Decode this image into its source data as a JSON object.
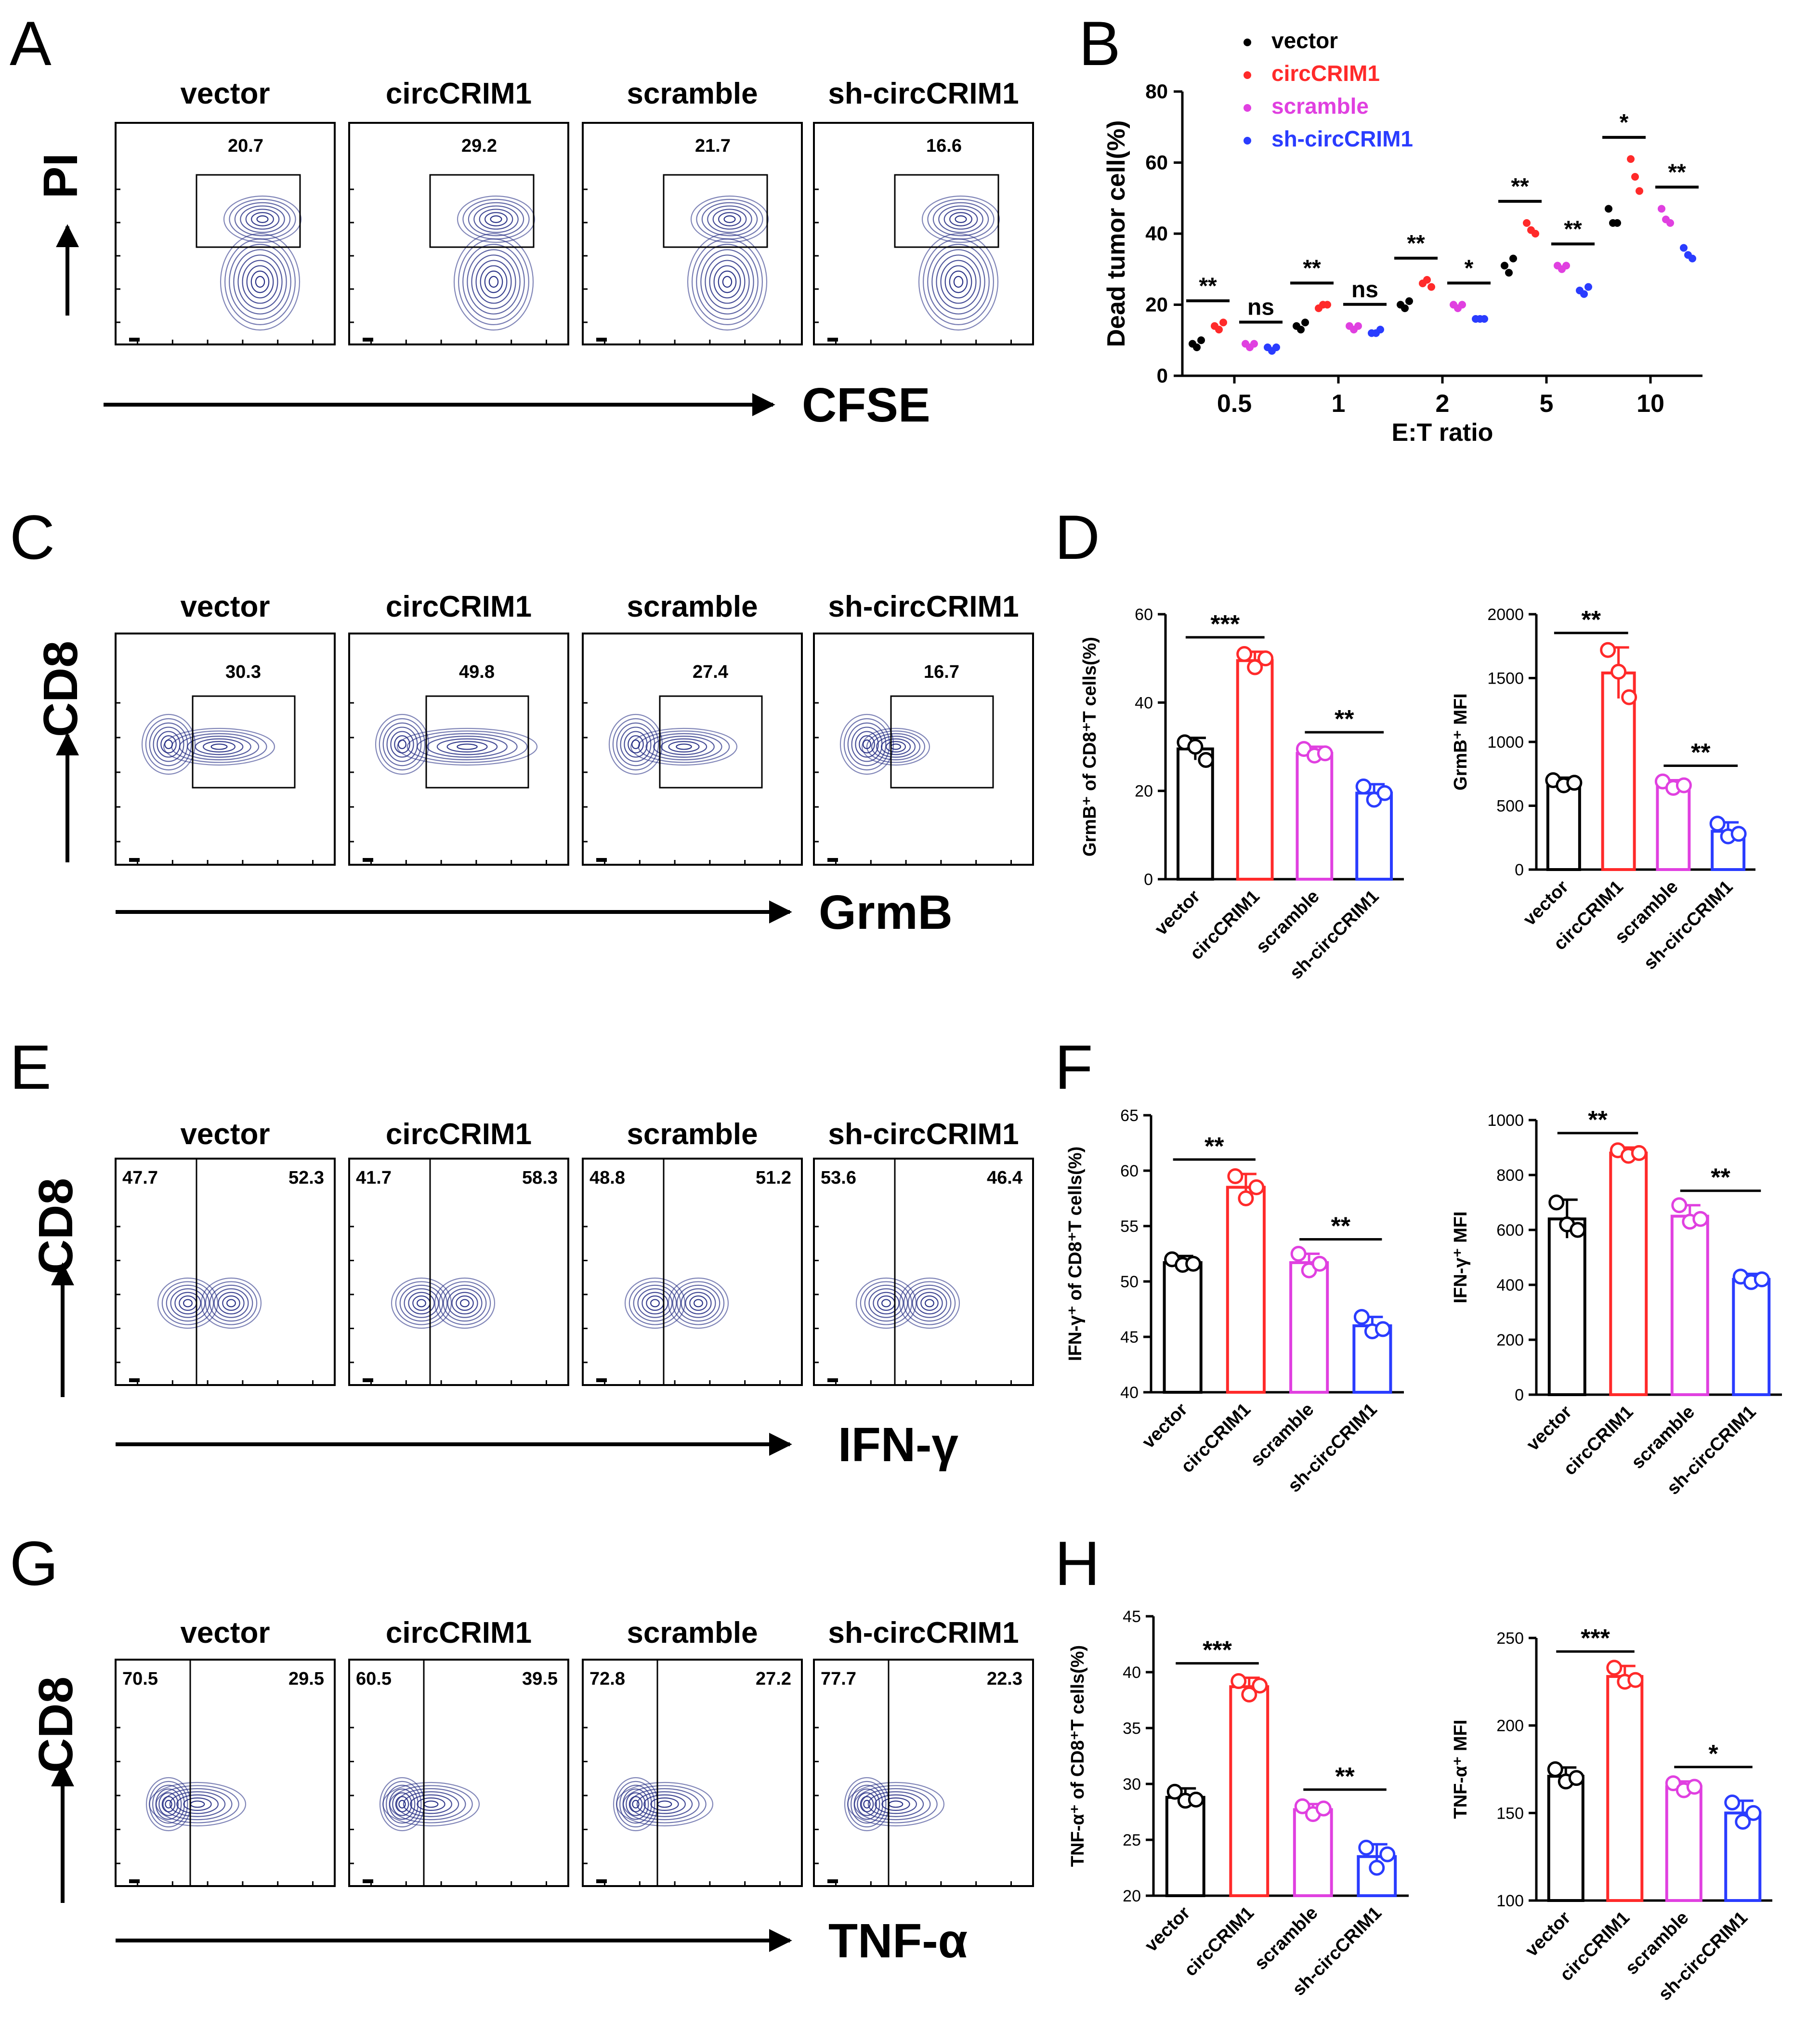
{
  "panels": {
    "A": "A",
    "B": "B",
    "C": "C",
    "D": "D",
    "E": "E",
    "F": "F",
    "G": "G",
    "H": "H"
  },
  "groups": [
    "vector",
    "circCRIM1",
    "scramble",
    "sh-circCRIM1"
  ],
  "colors": {
    "vector": "#000000",
    "circCRIM1": "#ff2a2a",
    "scramble": "#e040e0",
    "sh-circCRIM1": "#2a3cff",
    "contour": "#1a237e"
  },
  "flow_A": {
    "y_axis": "PI",
    "x_axis": "CFSE",
    "gates": [
      "20.7",
      "29.2",
      "21.7",
      "16.6"
    ]
  },
  "flow_C": {
    "y_axis": "CD8",
    "x_axis": "GrmB",
    "gates": [
      "30.3",
      "49.8",
      "27.4",
      "16.7"
    ]
  },
  "flow_E": {
    "y_axis": "CD8",
    "x_axis": "IFN-γ",
    "left": [
      "47.7",
      "41.7",
      "48.8",
      "53.6"
    ],
    "right": [
      "52.3",
      "58.3",
      "51.2",
      "46.4"
    ]
  },
  "flow_G": {
    "y_axis": "CD8",
    "x_axis": "TNF-α",
    "left": [
      "70.5",
      "60.5",
      "72.8",
      "77.7"
    ],
    "right": [
      "29.5",
      "39.5",
      "27.2",
      "22.3"
    ]
  },
  "chart_data": [
    {
      "id": "B",
      "type": "scatter",
      "title": "",
      "xlabel": "E:T ratio",
      "ylabel": "Dead tumor cell(%)",
      "categories": [
        "0.5",
        "1",
        "2",
        "5",
        "10"
      ],
      "ylim": [
        0,
        80
      ],
      "yticks": [
        "0",
        "20",
        "40",
        "60",
        "80"
      ],
      "series": [
        {
          "name": "vector",
          "points": [
            [
              9,
              8,
              10
            ],
            [
              14,
              13,
              15
            ],
            [
              20,
              19,
              21
            ],
            [
              31,
              29,
              33
            ],
            [
              47,
              43,
              43
            ]
          ]
        },
        {
          "name": "circCRIM1",
          "points": [
            [
              14,
              13,
              15
            ],
            [
              19,
              20,
              20
            ],
            [
              26,
              27,
              25
            ],
            [
              43,
              41,
              40
            ],
            [
              61,
              56,
              52
            ]
          ]
        },
        {
          "name": "scramble",
          "points": [
            [
              9,
              8,
              9
            ],
            [
              14,
              13,
              14
            ],
            [
              20,
              19,
              20
            ],
            [
              31,
              30,
              31
            ],
            [
              47,
              44,
              43
            ]
          ]
        },
        {
          "name": "sh-circCRIM1",
          "points": [
            [
              8,
              7,
              8
            ],
            [
              12,
              12,
              13
            ],
            [
              16,
              16,
              16
            ],
            [
              24,
              23,
              25
            ],
            [
              36,
              34,
              33
            ]
          ]
        }
      ],
      "significance": [
        "**",
        "ns",
        "**",
        "ns",
        "**",
        "*",
        "**",
        "**",
        "*",
        "**"
      ]
    },
    {
      "id": "D1",
      "type": "bar",
      "ylabel": "GrmB⁺ of CD8⁺T cells(%)",
      "categories": [
        "vector",
        "circCRIM1",
        "scramble",
        "sh-circCRIM1"
      ],
      "values": [
        29.5,
        49.5,
        28.5,
        19.5
      ],
      "errors": [
        2.5,
        2,
        1.5,
        2
      ],
      "points": [
        [
          31,
          30,
          27
        ],
        [
          51,
          48,
          50
        ],
        [
          29.5,
          28,
          28.5
        ],
        [
          21,
          18,
          19.5
        ]
      ],
      "ylim": [
        0,
        60
      ],
      "yticks": [
        "0",
        "20",
        "40",
        "60"
      ],
      "significance": [
        "***",
        "**"
      ]
    },
    {
      "id": "D2",
      "type": "bar",
      "ylabel": "GrmB⁺ MFI",
      "categories": [
        "vector",
        "circCRIM1",
        "scramble",
        "sh-circCRIM1"
      ],
      "values": [
        680,
        1540,
        660,
        300
      ],
      "errors": [
        40,
        200,
        40,
        70
      ],
      "points": [
        [
          700,
          660,
          680
        ],
        [
          1720,
          1550,
          1350
        ],
        [
          690,
          640,
          660
        ],
        [
          360,
          260,
          280
        ]
      ],
      "ylim": [
        0,
        2000
      ],
      "yticks": [
        "0",
        "500",
        "1000",
        "1500",
        "2000"
      ],
      "significance": [
        "**",
        "**"
      ]
    },
    {
      "id": "F1",
      "type": "bar",
      "ylabel": "IFN-γ⁺ of CD8⁺T cells(%)",
      "categories": [
        "vector",
        "circCRIM1",
        "scramble",
        "sh-circCRIM1"
      ],
      "values": [
        51.7,
        58.5,
        51.7,
        46
      ],
      "errors": [
        0.6,
        1.2,
        0.8,
        0.8
      ],
      "points": [
        [
          52,
          51.5,
          51.6
        ],
        [
          59.5,
          57.5,
          58.5
        ],
        [
          52.5,
          51,
          51.6
        ],
        [
          46.8,
          45.5,
          45.7
        ]
      ],
      "ylim": [
        40,
        65
      ],
      "yticks": [
        "40",
        "45",
        "50",
        "55",
        "60",
        "65"
      ],
      "significance": [
        "**",
        "**"
      ]
    },
    {
      "id": "F2",
      "type": "bar",
      "ylabel": "IFN-γ⁺ MFI",
      "categories": [
        "vector",
        "circCRIM1",
        "scramble",
        "sh-circCRIM1"
      ],
      "values": [
        640,
        880,
        650,
        420
      ],
      "errors": [
        70,
        20,
        40,
        20
      ],
      "points": [
        [
          700,
          620,
          600
        ],
        [
          890,
          870,
          880
        ],
        [
          690,
          630,
          640
        ],
        [
          430,
          410,
          420
        ]
      ],
      "ylim": [
        0,
        1000
      ],
      "yticks": [
        "0",
        "200",
        "400",
        "600",
        "800",
        "1000"
      ],
      "significance": [
        "**",
        "**"
      ]
    },
    {
      "id": "H1",
      "type": "bar",
      "ylabel": "TNF-α⁺ of CD8⁺T cells(%)",
      "categories": [
        "vector",
        "circCRIM1",
        "scramble",
        "sh-circCRIM1"
      ],
      "values": [
        28.8,
        38.7,
        27.7,
        23.5
      ],
      "errors": [
        0.8,
        0.8,
        0.5,
        1.1
      ],
      "points": [
        [
          29.3,
          28.5,
          28.6
        ],
        [
          39.2,
          38,
          38.8
        ],
        [
          28,
          27.3,
          27.8
        ],
        [
          24.3,
          22.5,
          23.7
        ]
      ],
      "ylim": [
        20,
        45
      ],
      "yticks": [
        "20",
        "25",
        "30",
        "35",
        "40",
        "45"
      ],
      "significance": [
        "***",
        "**"
      ]
    },
    {
      "id": "H2",
      "type": "bar",
      "ylabel": "TNF-α⁺ MFI",
      "categories": [
        "vector",
        "circCRIM1",
        "scramble",
        "sh-circCRIM1"
      ],
      "values": [
        171,
        228,
        165,
        150
      ],
      "errors": [
        5,
        6,
        3,
        7
      ],
      "points": [
        [
          175,
          168,
          170
        ],
        [
          233,
          225,
          226
        ],
        [
          167,
          163,
          165
        ],
        [
          156,
          145,
          150
        ]
      ],
      "ylim": [
        100,
        250
      ],
      "yticks": [
        "100",
        "150",
        "200",
        "250"
      ],
      "significance": [
        "***",
        "*"
      ]
    }
  ]
}
